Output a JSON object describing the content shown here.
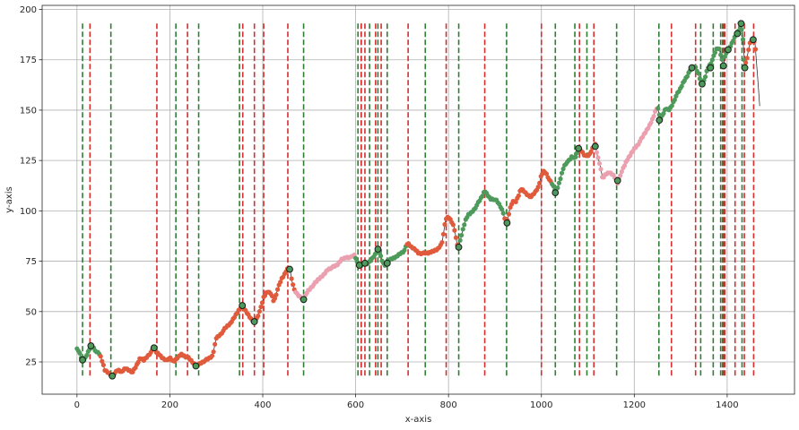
{
  "chart_data": {
    "type": "line",
    "title": "",
    "xlabel": "x-axis",
    "ylabel": "y-axis",
    "xlim": [
      -75,
      1545
    ],
    "ylim": [
      9,
      202
    ],
    "xticks": [
      0,
      200,
      400,
      600,
      800,
      1000,
      1200,
      1400
    ],
    "yticks": [
      25,
      50,
      75,
      100,
      125,
      150,
      175,
      200
    ],
    "grid": true,
    "legend": "none",
    "colors": {
      "price_line": "#333333",
      "buy_marker": "#4d9a5a",
      "sell_marker": "#e05a3c",
      "pink_marker": "#eba0b0",
      "buy_vline": "#2e7d32",
      "sell_vline": "#d32f2f",
      "extrema_marker_edge": "#1a1a1a"
    },
    "price_path": [
      [
        0,
        32
      ],
      [
        8,
        28
      ],
      [
        12,
        25
      ],
      [
        18,
        27
      ],
      [
        22,
        29
      ],
      [
        26,
        31
      ],
      [
        30,
        33
      ],
      [
        36,
        32
      ],
      [
        42,
        30
      ],
      [
        48,
        29
      ],
      [
        52,
        27
      ],
      [
        56,
        24
      ],
      [
        60,
        21
      ],
      [
        66,
        20
      ],
      [
        72,
        19
      ],
      [
        76,
        18
      ],
      [
        80,
        19
      ],
      [
        88,
        21
      ],
      [
        96,
        20
      ],
      [
        104,
        22
      ],
      [
        112,
        21
      ],
      [
        120,
        20
      ],
      [
        128,
        23
      ],
      [
        136,
        27
      ],
      [
        144,
        26
      ],
      [
        152,
        28
      ],
      [
        160,
        30
      ],
      [
        166,
        32
      ],
      [
        170,
        30
      ],
      [
        176,
        29
      ],
      [
        184,
        27
      ],
      [
        192,
        26
      ],
      [
        200,
        27
      ],
      [
        208,
        25
      ],
      [
        216,
        27
      ],
      [
        224,
        29
      ],
      [
        232,
        28
      ],
      [
        240,
        27
      ],
      [
        248,
        25
      ],
      [
        256,
        23
      ],
      [
        262,
        24
      ],
      [
        270,
        25
      ],
      [
        278,
        26
      ],
      [
        286,
        27
      ],
      [
        292,
        28
      ],
      [
        300,
        37
      ],
      [
        310,
        39
      ],
      [
        320,
        42
      ],
      [
        330,
        44
      ],
      [
        338,
        47
      ],
      [
        346,
        50
      ],
      [
        352,
        52
      ],
      [
        358,
        52
      ],
      [
        364,
        50
      ],
      [
        370,
        48
      ],
      [
        376,
        46
      ],
      [
        382,
        45
      ],
      [
        388,
        47
      ],
      [
        396,
        52
      ],
      [
        402,
        57
      ],
      [
        410,
        60
      ],
      [
        418,
        59
      ],
      [
        424,
        55
      ],
      [
        432,
        61
      ],
      [
        440,
        66
      ],
      [
        446,
        68
      ],
      [
        452,
        71
      ],
      [
        458,
        72
      ],
      [
        464,
        64
      ],
      [
        470,
        60
      ],
      [
        476,
        58
      ],
      [
        482,
        57
      ],
      [
        488,
        56
      ],
      [
        496,
        60
      ],
      [
        504,
        62
      ],
      [
        512,
        64
      ],
      [
        520,
        66
      ],
      [
        530,
        68
      ],
      [
        540,
        71
      ],
      [
        550,
        72
      ],
      [
        560,
        73
      ],
      [
        570,
        76
      ],
      [
        580,
        77
      ],
      [
        590,
        77
      ],
      [
        598,
        78
      ],
      [
        604,
        74
      ],
      [
        608,
        73
      ],
      [
        612,
        73
      ],
      [
        616,
        74
      ],
      [
        620,
        74
      ],
      [
        626,
        74
      ],
      [
        632,
        75
      ],
      [
        638,
        77
      ],
      [
        644,
        79
      ],
      [
        648,
        81
      ],
      [
        652,
        79
      ],
      [
        656,
        76
      ],
      [
        662,
        73
      ],
      [
        668,
        75
      ],
      [
        676,
        76
      ],
      [
        686,
        77
      ],
      [
        696,
        79
      ],
      [
        704,
        80
      ],
      [
        712,
        84
      ],
      [
        720,
        82
      ],
      [
        728,
        81
      ],
      [
        736,
        79
      ],
      [
        746,
        79
      ],
      [
        756,
        79
      ],
      [
        766,
        80
      ],
      [
        776,
        81
      ],
      [
        786,
        84
      ],
      [
        794,
        96
      ],
      [
        800,
        97
      ],
      [
        806,
        95
      ],
      [
        812,
        92
      ],
      [
        818,
        84
      ],
      [
        822,
        82
      ],
      [
        828,
        88
      ],
      [
        836,
        95
      ],
      [
        842,
        98
      ],
      [
        848,
        99
      ],
      [
        856,
        101
      ],
      [
        864,
        104
      ],
      [
        872,
        107
      ],
      [
        878,
        110
      ],
      [
        884,
        108
      ],
      [
        890,
        106
      ],
      [
        896,
        106
      ],
      [
        904,
        105
      ],
      [
        912,
        102
      ],
      [
        918,
        99
      ],
      [
        922,
        95
      ],
      [
        926,
        94
      ],
      [
        932,
        101
      ],
      [
        938,
        105
      ],
      [
        944,
        104
      ],
      [
        950,
        107
      ],
      [
        956,
        111
      ],
      [
        962,
        110
      ],
      [
        970,
        108
      ],
      [
        978,
        107
      ],
      [
        986,
        109
      ],
      [
        994,
        112
      ],
      [
        1000,
        118
      ],
      [
        1006,
        120
      ],
      [
        1012,
        118
      ],
      [
        1018,
        115
      ],
      [
        1024,
        113
      ],
      [
        1030,
        110
      ],
      [
        1036,
        112
      ],
      [
        1042,
        117
      ],
      [
        1048,
        122
      ],
      [
        1054,
        124
      ],
      [
        1060,
        125
      ],
      [
        1066,
        127
      ],
      [
        1072,
        126
      ],
      [
        1076,
        128
      ],
      [
        1080,
        131
      ],
      [
        1086,
        130
      ],
      [
        1092,
        128
      ],
      [
        1098,
        127
      ],
      [
        1104,
        128
      ],
      [
        1110,
        131
      ],
      [
        1116,
        133
      ],
      [
        1120,
        128
      ],
      [
        1126,
        123
      ],
      [
        1132,
        116
      ],
      [
        1138,
        118
      ],
      [
        1146,
        119
      ],
      [
        1154,
        118
      ],
      [
        1160,
        116
      ],
      [
        1164,
        114
      ],
      [
        1170,
        118
      ],
      [
        1176,
        121
      ],
      [
        1184,
        125
      ],
      [
        1192,
        128
      ],
      [
        1200,
        131
      ],
      [
        1208,
        133
      ],
      [
        1216,
        136
      ],
      [
        1224,
        139
      ],
      [
        1232,
        142
      ],
      [
        1240,
        146
      ],
      [
        1246,
        150
      ],
      [
        1250,
        152
      ],
      [
        1256,
        145
      ],
      [
        1262,
        148
      ],
      [
        1268,
        151
      ],
      [
        1274,
        150
      ],
      [
        1280,
        152
      ],
      [
        1286,
        155
      ],
      [
        1292,
        158
      ],
      [
        1298,
        160
      ],
      [
        1306,
        164
      ],
      [
        1314,
        167
      ],
      [
        1320,
        170
      ],
      [
        1326,
        172
      ],
      [
        1332,
        171
      ],
      [
        1338,
        168
      ],
      [
        1342,
        165
      ],
      [
        1346,
        162
      ],
      [
        1352,
        166
      ],
      [
        1358,
        171
      ],
      [
        1364,
        173
      ],
      [
        1370,
        176
      ],
      [
        1376,
        180
      ],
      [
        1382,
        181
      ],
      [
        1388,
        176
      ],
      [
        1392,
        172
      ],
      [
        1396,
        178
      ],
      [
        1402,
        180
      ],
      [
        1408,
        182
      ],
      [
        1414,
        185
      ],
      [
        1420,
        188
      ],
      [
        1426,
        190
      ],
      [
        1430,
        192
      ],
      [
        1434,
        185
      ],
      [
        1438,
        172
      ],
      [
        1442,
        175
      ],
      [
        1446,
        180
      ],
      [
        1450,
        184
      ],
      [
        1456,
        185
      ],
      [
        1460,
        183
      ],
      [
        1466,
        165
      ],
      [
        1470,
        152
      ]
    ],
    "segment_colors": [
      {
        "from": 0,
        "to": 50,
        "color": "green"
      },
      {
        "from": 50,
        "to": 170,
        "color": "red"
      },
      {
        "from": 170,
        "to": 290,
        "color": "red"
      },
      {
        "from": 290,
        "to": 470,
        "color": "red"
      },
      {
        "from": 470,
        "to": 600,
        "color": "pink"
      },
      {
        "from": 600,
        "to": 710,
        "color": "green"
      },
      {
        "from": 710,
        "to": 760,
        "color": "red"
      },
      {
        "from": 760,
        "to": 790,
        "color": "red"
      },
      {
        "from": 790,
        "to": 822,
        "color": "red"
      },
      {
        "from": 822,
        "to": 920,
        "color": "green"
      },
      {
        "from": 920,
        "to": 1022,
        "color": "red"
      },
      {
        "from": 1022,
        "to": 1080,
        "color": "green"
      },
      {
        "from": 1080,
        "to": 1118,
        "color": "red"
      },
      {
        "from": 1118,
        "to": 1250,
        "color": "pink"
      },
      {
        "from": 1250,
        "to": 1290,
        "color": "green"
      },
      {
        "from": 1290,
        "to": 1440,
        "color": "green"
      },
      {
        "from": 1440,
        "to": 1462,
        "color": "red"
      }
    ],
    "buy_lines": [
      12,
      73,
      213,
      262,
      350,
      488,
      605,
      612,
      630,
      648,
      668,
      750,
      822,
      925,
      1030,
      1072,
      1098,
      1162,
      1253,
      1343,
      1370,
      1386,
      1393,
      1432
    ],
    "sell_lines": [
      28,
      172,
      238,
      357,
      382,
      402,
      454,
      612,
      620,
      643,
      655,
      713,
      795,
      878,
      1000,
      1082,
      1113,
      1280,
      1332,
      1390,
      1395,
      1417,
      1437,
      1457
    ],
    "extrema_points": [
      [
        12,
        26
      ],
      [
        30,
        33
      ],
      [
        76,
        18
      ],
      [
        166,
        32
      ],
      [
        256,
        23
      ],
      [
        356,
        53
      ],
      [
        382,
        45
      ],
      [
        458,
        71
      ],
      [
        488,
        56
      ],
      [
        608,
        73
      ],
      [
        620,
        74
      ],
      [
        648,
        81
      ],
      [
        668,
        74
      ],
      [
        822,
        82
      ],
      [
        926,
        94
      ],
      [
        1030,
        109
      ],
      [
        1080,
        131
      ],
      [
        1116,
        132
      ],
      [
        1164,
        115
      ],
      [
        1254,
        145
      ],
      [
        1324,
        171
      ],
      [
        1346,
        163
      ],
      [
        1364,
        171
      ],
      [
        1392,
        172
      ],
      [
        1402,
        180
      ],
      [
        1422,
        188
      ],
      [
        1430,
        193
      ],
      [
        1438,
        171
      ],
      [
        1456,
        185
      ]
    ]
  }
}
